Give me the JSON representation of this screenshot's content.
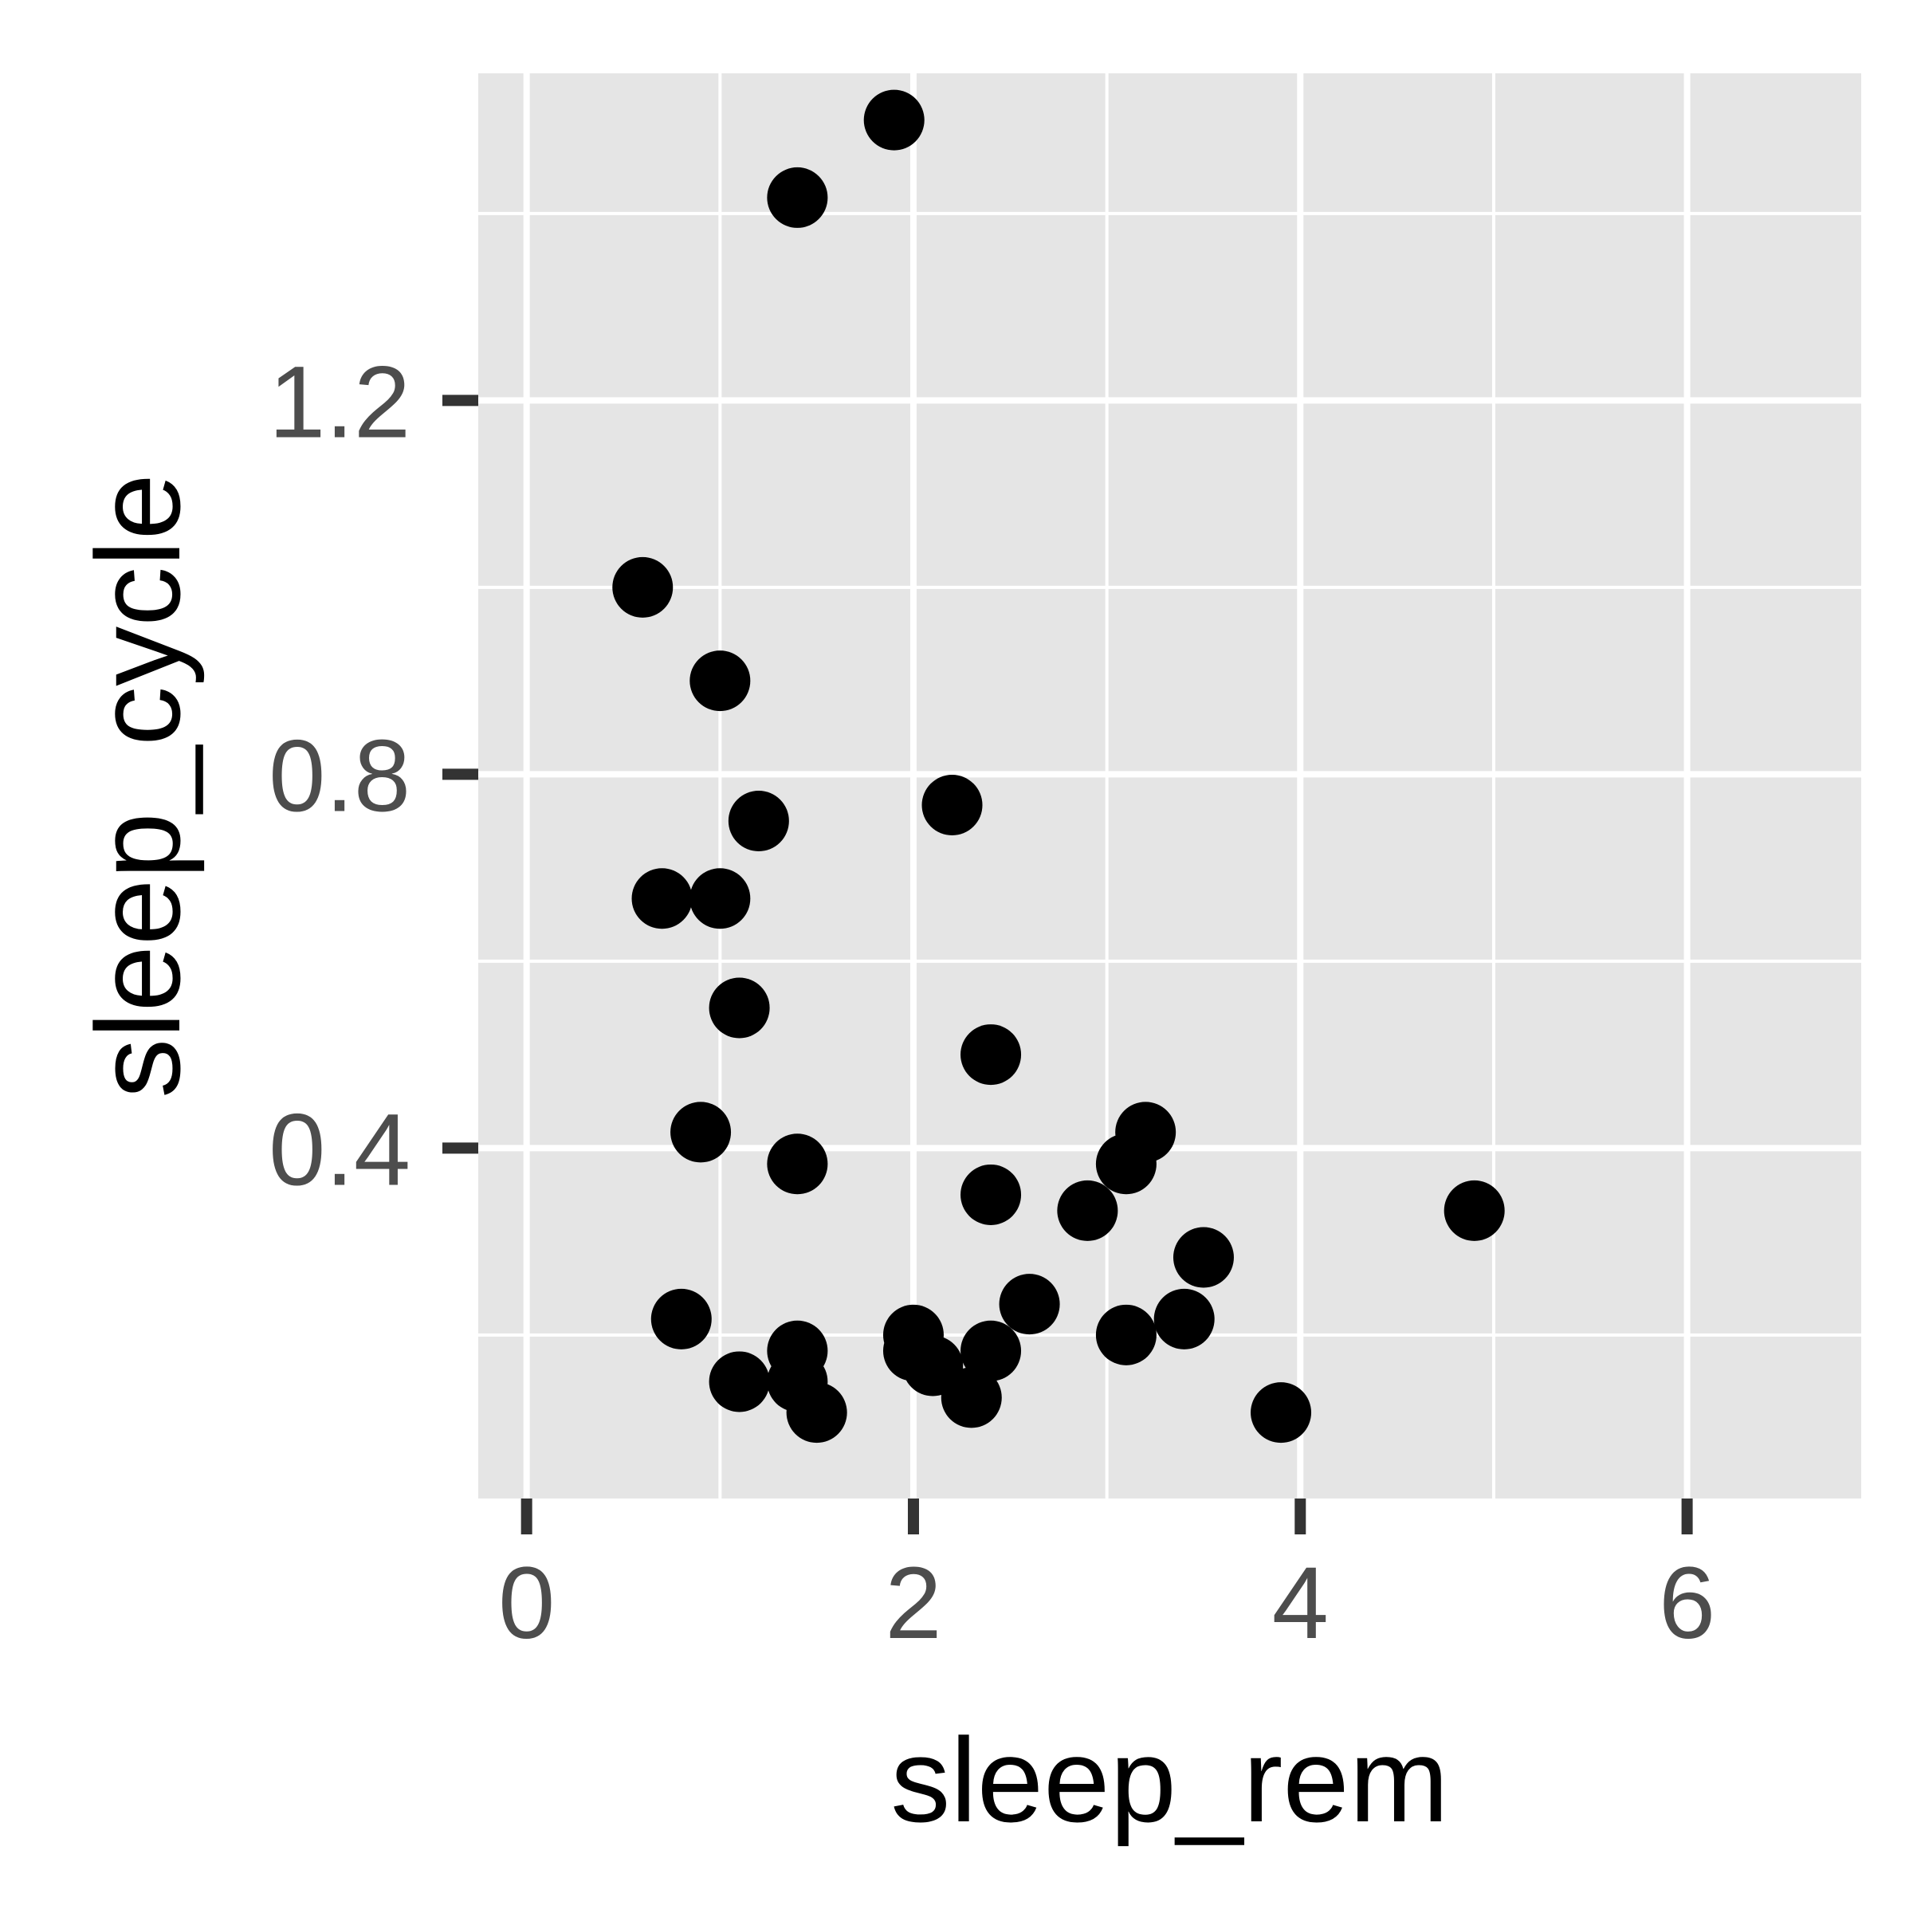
{
  "chart_data": {
    "type": "scatter",
    "title": "",
    "xlabel": "sleep_rem",
    "ylabel": "sleep_cycle",
    "xlim": [
      -0.25,
      6.9
    ],
    "ylim": [
      0.025,
      1.55
    ],
    "x_ticks": [
      0,
      2,
      4,
      6
    ],
    "x_tick_labels": [
      "0",
      "2",
      "4",
      "6"
    ],
    "y_ticks": [
      0.4,
      0.8,
      1.2
    ],
    "y_tick_labels": [
      "0.4",
      "0.8",
      "1.2"
    ],
    "grid": true,
    "legend": "none",
    "colors": {
      "panel": "#e5e5e5",
      "grid": "#ffffff",
      "point": "#000000",
      "tick_mark": "#333333"
    },
    "points": [
      {
        "x": 1.9,
        "y": 1.5
      },
      {
        "x": 1.4,
        "y": 1.417
      },
      {
        "x": 0.6,
        "y": 1.0
      },
      {
        "x": 1.0,
        "y": 0.9
      },
      {
        "x": 2.2,
        "y": 0.767
      },
      {
        "x": 1.2,
        "y": 0.75
      },
      {
        "x": 0.7,
        "y": 0.667
      },
      {
        "x": 1.0,
        "y": 0.667
      },
      {
        "x": 1.1,
        "y": 0.55
      },
      {
        "x": 2.4,
        "y": 0.5
      },
      {
        "x": 0.9,
        "y": 0.417
      },
      {
        "x": 3.2,
        "y": 0.417
      },
      {
        "x": 1.4,
        "y": 0.383
      },
      {
        "x": 3.1,
        "y": 0.383
      },
      {
        "x": 2.4,
        "y": 0.35
      },
      {
        "x": 2.9,
        "y": 0.333
      },
      {
        "x": 4.9,
        "y": 0.333
      },
      {
        "x": 3.5,
        "y": 0.283
      },
      {
        "x": 2.6,
        "y": 0.233
      },
      {
        "x": 0.8,
        "y": 0.217
      },
      {
        "x": 3.4,
        "y": 0.217
      },
      {
        "x": 2.0,
        "y": 0.2
      },
      {
        "x": 3.1,
        "y": 0.2
      },
      {
        "x": 2.0,
        "y": 0.183
      },
      {
        "x": 1.4,
        "y": 0.183
      },
      {
        "x": 2.4,
        "y": 0.183
      },
      {
        "x": 2.1,
        "y": 0.167
      },
      {
        "x": 1.1,
        "y": 0.15
      },
      {
        "x": 1.4,
        "y": 0.15
      },
      {
        "x": 2.3,
        "y": 0.133
      },
      {
        "x": 1.5,
        "y": 0.117
      },
      {
        "x": 3.9,
        "y": 0.117
      }
    ]
  }
}
